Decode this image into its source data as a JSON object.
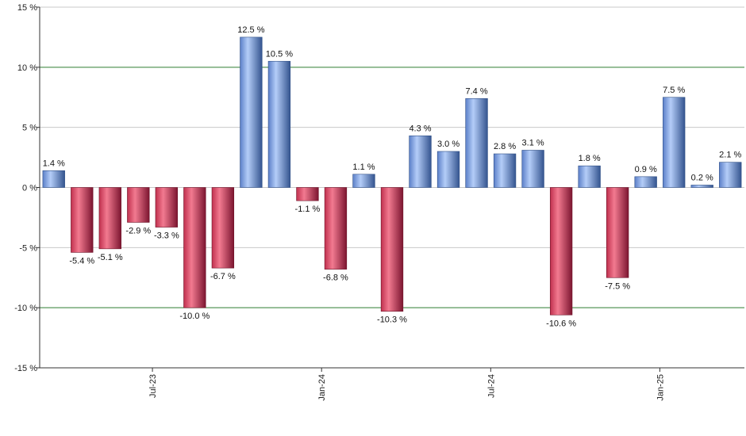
{
  "chart_data": {
    "type": "bar",
    "title": "",
    "xlabel": "",
    "ylabel": "",
    "ylim": [
      -15,
      15
    ],
    "y_ticks": [
      15,
      10,
      5,
      0,
      -5,
      -10,
      -15
    ],
    "y_tick_labels": [
      "15 %",
      "10 %",
      "5 %",
      "0 %",
      "-5 %",
      "-10 %",
      "-15 %"
    ],
    "highlight_gridlines": [
      10,
      -10
    ],
    "x_tick_labels": [
      {
        "label": "Jul-23",
        "index": 3.5
      },
      {
        "label": "Jan-24",
        "index": 9.5
      },
      {
        "label": "Jul-24",
        "index": 15.5
      },
      {
        "label": "Jan-25",
        "index": 21.5
      }
    ],
    "values": [
      1.4,
      -5.4,
      -5.1,
      -2.9,
      -3.3,
      -10.0,
      -6.7,
      12.5,
      10.5,
      -1.1,
      -6.8,
      1.1,
      -10.3,
      4.3,
      3.0,
      7.4,
      2.8,
      3.1,
      -10.6,
      1.8,
      -7.5,
      0.9,
      7.5,
      0.2,
      2.1
    ],
    "data_labels": [
      "1.4 %",
      "-5.4 %",
      "-5.1 %",
      "-2.9 %",
      "-3.3 %",
      "-10.0 %",
      "-6.7 %",
      "12.5 %",
      "10.5 %",
      "-1.1 %",
      "-6.8 %",
      "1.1 %",
      "-10.3 %",
      "4.3 %",
      "3.0 %",
      "7.4 %",
      "2.8 %",
      "3.1 %",
      "-10.6 %",
      "1.8 %",
      "-7.5 %",
      "0.9 %",
      "7.5 %",
      "0.2 %",
      "2.1 %"
    ],
    "grid": true,
    "colors": {
      "positive_light": "#a9c4f5",
      "positive_dark": "#3d5f9e",
      "negative_light": "#f07088",
      "negative_dark": "#8c1c35",
      "grid": "#c8c8c8",
      "highlight_grid": "#2e7d32",
      "axis": "#333333"
    }
  }
}
